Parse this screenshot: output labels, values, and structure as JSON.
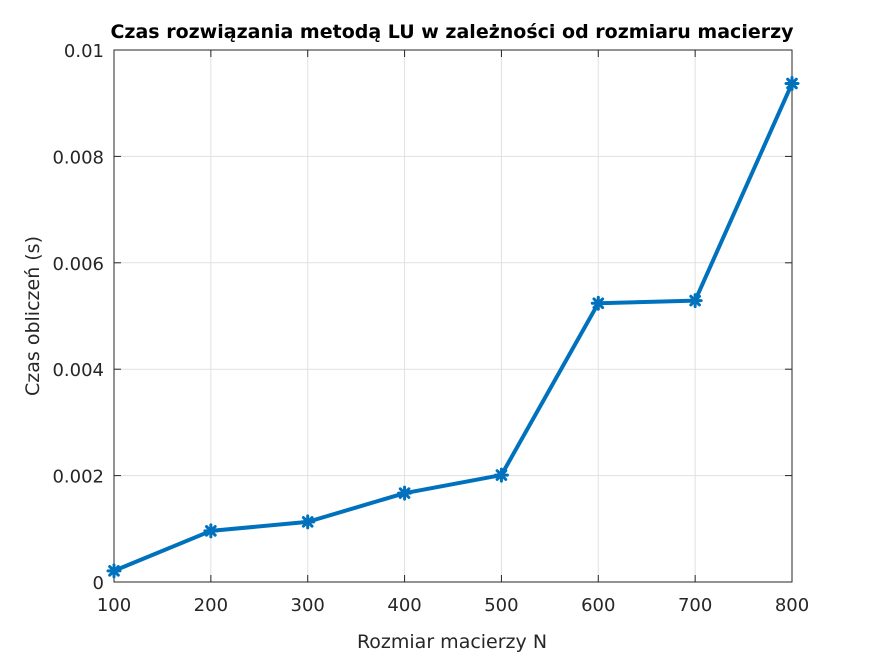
{
  "chart_data": {
    "type": "line",
    "title": "Czas rozwiązania metodą LU w zależności od rozmiaru macierzy",
    "xlabel": "Rozmiar macierzy N",
    "ylabel": "Czas obliczeń (s)",
    "xlim": [
      100,
      800
    ],
    "ylim": [
      0,
      0.01
    ],
    "xticks": [
      100,
      200,
      300,
      400,
      500,
      600,
      700,
      800
    ],
    "xtick_labels": [
      "100",
      "200",
      "300",
      "400",
      "500",
      "600",
      "700",
      "800"
    ],
    "yticks": [
      0,
      0.002,
      0.004,
      0.006,
      0.008,
      0.01
    ],
    "ytick_labels": [
      "0",
      "0.002",
      "0.004",
      "0.006",
      "0.008",
      "0.01"
    ],
    "grid": true,
    "series": [
      {
        "color": "#0072bd",
        "marker": "asterisk",
        "x": [
          100,
          200,
          300,
          400,
          500,
          600,
          700,
          800
        ],
        "y": [
          0.00021,
          0.00096,
          0.00113,
          0.00167,
          0.00201,
          0.00524,
          0.00529,
          0.00937
        ]
      }
    ]
  }
}
